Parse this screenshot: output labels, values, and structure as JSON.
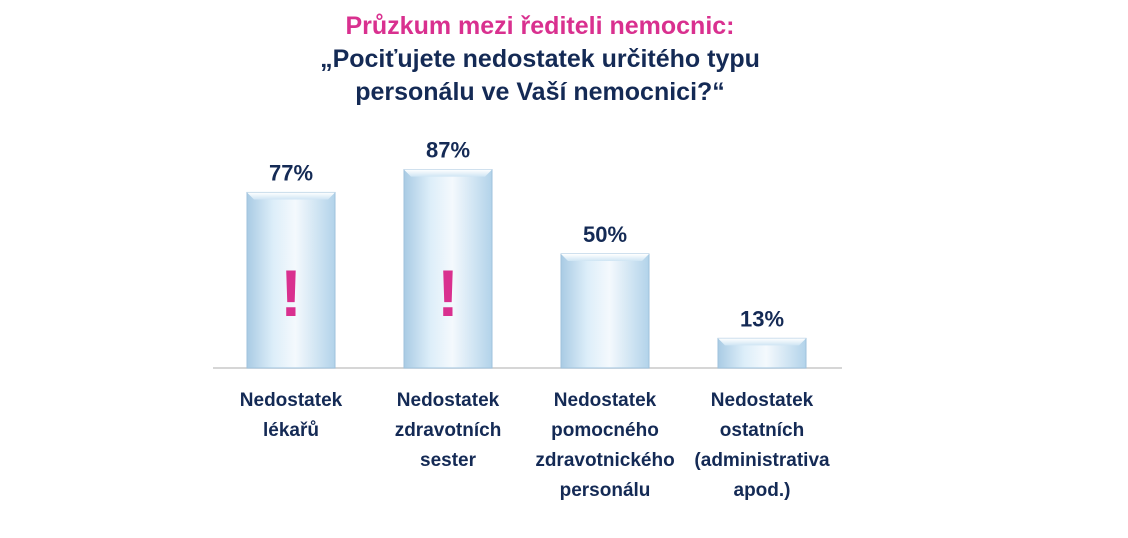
{
  "chart_data": {
    "type": "bar",
    "title": "Průzkum mezi řediteli nemocnic:",
    "subtitle_lines": [
      "„Pociťujete nedostatek určitého typu",
      "personálu ve Vaší nemocnici?“"
    ],
    "categories": [
      [
        "Nedostatek",
        "lékařů"
      ],
      [
        "Nedostatek",
        "zdravotních",
        "sester"
      ],
      [
        "Nedostatek",
        "pomocného",
        "zdravotnického",
        "personálu"
      ],
      [
        "Nedostatek",
        "ostatních",
        "(administrativa",
        "apod.)"
      ]
    ],
    "values": [
      77,
      87,
      50,
      13
    ],
    "value_labels": [
      "77%",
      "87%",
      "50%",
      "13%"
    ],
    "annotations": [
      "!",
      "!",
      "",
      ""
    ],
    "ylim": [
      0,
      100
    ],
    "xlabel": "",
    "ylabel": "",
    "grid": false,
    "legend": "none"
  },
  "colors": {
    "title": "#d9308f",
    "text": "#142a55",
    "bar_light": "#eef6fc",
    "bar_dark": "#b7d6ec",
    "exclamation": "#d9308f",
    "axis": "#c8c8c8"
  }
}
